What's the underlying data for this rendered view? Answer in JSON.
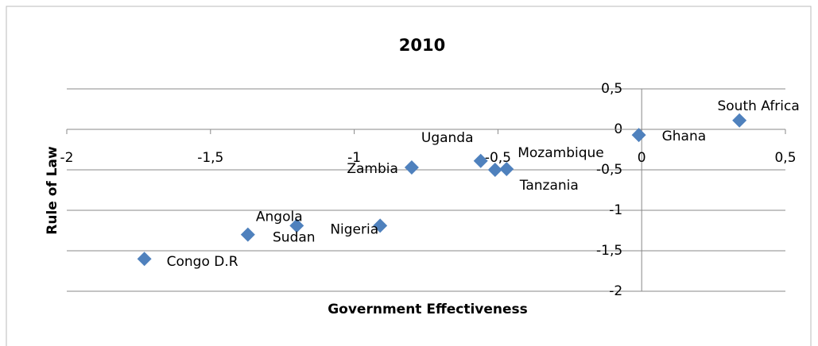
{
  "chart_data": {
    "type": "scatter",
    "title": "2010",
    "xlabel": "Government Effectiveness",
    "ylabel": "Rule of Law",
    "color": "#4f81bd",
    "grid": true,
    "xlim": [
      -2,
      0.5
    ],
    "ylim": [
      -2,
      0.5
    ],
    "xticks": [
      -2,
      {
        "value": -1.5,
        "label": "-1,5"
      },
      -1,
      {
        "value": -0.5,
        "label": "-0,5"
      },
      0,
      {
        "value": 0.5,
        "label": "0,5"
      }
    ],
    "yticks": [
      -2,
      {
        "value": -1.5,
        "label": "-1,5"
      },
      -1,
      {
        "value": -0.5,
        "label": "-0,5"
      },
      0,
      {
        "value": 0.5,
        "label": "0,5"
      }
    ],
    "points": [
      {
        "label": "South Africa",
        "x": 0.34,
        "y": 0.11
      },
      {
        "label": "Ghana",
        "x": -0.01,
        "y": -0.07
      },
      {
        "label": "Mozambique",
        "x": -0.47,
        "y": -0.49
      },
      {
        "label": "Tanzania",
        "x": -0.51,
        "y": -0.5
      },
      {
        "label": "Uganda",
        "x": -0.56,
        "y": -0.39
      },
      {
        "label": "Zambia",
        "x": -0.8,
        "y": -0.47
      },
      {
        "label": "Nigeria",
        "x": -0.91,
        "y": -1.19
      },
      {
        "label": "Angola",
        "x": -1.2,
        "y": -1.19
      },
      {
        "label": "Sudan",
        "x": -1.37,
        "y": -1.3
      },
      {
        "label": "Congo D.R",
        "x": -1.73,
        "y": -1.6
      }
    ]
  }
}
